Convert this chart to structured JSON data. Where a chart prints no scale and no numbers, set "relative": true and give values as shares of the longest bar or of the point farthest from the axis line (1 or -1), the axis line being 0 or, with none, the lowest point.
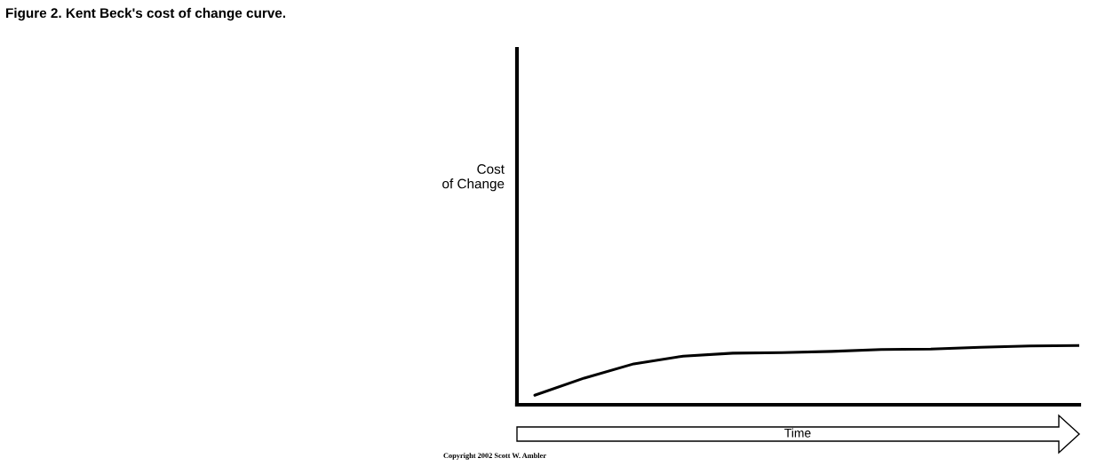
{
  "chart_data": {
    "type": "line",
    "title": "Figure 2. Kent Beck's cost of change curve.",
    "xlabel": "Time",
    "categories": [
      null,
      null,
      null,
      null,
      null,
      null,
      null,
      null,
      null,
      null,
      null,
      null
    ],
    "relative": true,
    "series": [
      {
        "color": "#000000",
        "values": [
          0.16,
          0.45,
          0.69,
          0.82,
          0.87,
          0.88,
          0.9,
          0.93,
          0.94,
          0.97,
          0.99,
          1.0
        ]
      }
    ],
    "annotations": [
      "Cost\nof Change",
      "Copyright 2002 Scott W. Ambler"
    ],
    "grid": false,
    "legend": false,
    "marker": "none",
    "line_style": "solid"
  }
}
